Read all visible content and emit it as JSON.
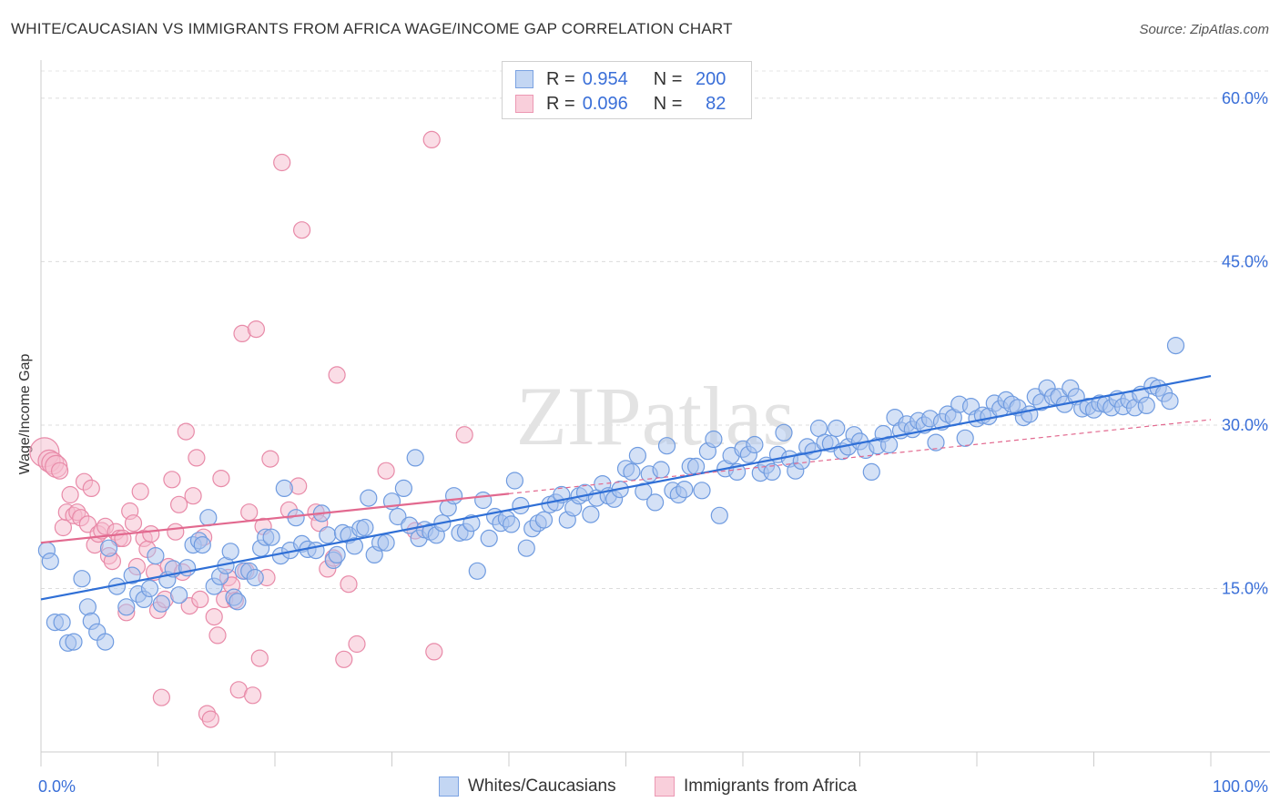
{
  "title": "WHITE/CAUCASIAN VS IMMIGRANTS FROM AFRICA WAGE/INCOME GAP CORRELATION CHART",
  "source": "Source: ZipAtlas.com",
  "watermark": "ZIPatlas",
  "legend": {
    "rows": [
      {
        "r_label": "R =",
        "r_value": "0.954",
        "n_label": "N =",
        "n_value": "200"
      },
      {
        "r_label": "R =",
        "r_value": "0.096",
        "n_label": "N =",
        "n_value": "82"
      }
    ]
  },
  "bottom_legend": {
    "white": "Whites/Caucasians",
    "africa": "Immigrants from Africa"
  },
  "colors": {
    "blue_fill": "#a9c4ee",
    "blue_stroke": "#6f9be0",
    "blue_line": "#2f6fd6",
    "pink_fill": "#f6bccd",
    "pink_stroke": "#e88aa8",
    "pink_line": "#e2698f",
    "axis_text": "#3a6fd8"
  },
  "chart_data": {
    "type": "scatter",
    "title": "WHITE/CAUCASIAN VS IMMIGRANTS FROM AFRICA WAGE/INCOME GAP CORRELATION CHART",
    "xlabel": "",
    "ylabel": "Wage/Income Gap",
    "xlim": [
      0,
      100
    ],
    "ylim": [
      0,
      63
    ],
    "x_tick_labels": [
      "0.0%",
      "100.0%"
    ],
    "y_ticks": [
      15,
      30,
      45,
      60
    ],
    "y_tick_labels": [
      "15.0%",
      "30.0%",
      "45.0%",
      "60.0%"
    ],
    "grid": true,
    "legend_position": "top-center",
    "series": [
      {
        "name": "Whites/Caucasians",
        "r": 0.954,
        "n": 200,
        "trend": {
          "x": [
            0,
            100
          ],
          "y": [
            14.0,
            34.5
          ]
        },
        "points": [
          [
            0.5,
            18.5
          ],
          [
            0.8,
            17.5
          ],
          [
            1.2,
            11.9
          ],
          [
            1.8,
            11.9
          ],
          [
            2.3,
            10.0
          ],
          [
            2.8,
            10.1
          ],
          [
            3.5,
            15.9
          ],
          [
            4.0,
            13.3
          ],
          [
            4.3,
            12.0
          ],
          [
            4.8,
            11.0
          ],
          [
            5.5,
            10.1
          ],
          [
            5.8,
            18.7
          ],
          [
            6.5,
            15.2
          ],
          [
            7.3,
            13.3
          ],
          [
            7.8,
            16.2
          ],
          [
            8.3,
            14.5
          ],
          [
            8.8,
            14.0
          ],
          [
            9.3,
            15.0
          ],
          [
            9.8,
            18.0
          ],
          [
            10.3,
            13.6
          ],
          [
            10.8,
            15.8
          ],
          [
            11.3,
            16.8
          ],
          [
            11.8,
            14.4
          ],
          [
            12.5,
            16.9
          ],
          [
            13.0,
            19.0
          ],
          [
            13.5,
            19.4
          ],
          [
            13.8,
            19.0
          ],
          [
            14.3,
            21.5
          ],
          [
            14.8,
            15.2
          ],
          [
            15.3,
            16.1
          ],
          [
            15.8,
            17.1
          ],
          [
            16.2,
            18.4
          ],
          [
            16.5,
            14.2
          ],
          [
            16.8,
            13.8
          ],
          [
            17.3,
            16.6
          ],
          [
            17.8,
            16.6
          ],
          [
            18.3,
            16.0
          ],
          [
            18.8,
            18.7
          ],
          [
            19.2,
            19.7
          ],
          [
            19.7,
            19.7
          ],
          [
            20.5,
            18.0
          ],
          [
            20.8,
            24.2
          ],
          [
            21.3,
            18.5
          ],
          [
            21.8,
            21.5
          ],
          [
            22.3,
            19.1
          ],
          [
            22.8,
            18.6
          ],
          [
            23.5,
            18.5
          ],
          [
            24.0,
            21.9
          ],
          [
            24.5,
            19.9
          ],
          [
            25.0,
            17.6
          ],
          [
            25.3,
            18.1
          ],
          [
            25.8,
            20.1
          ],
          [
            26.3,
            19.9
          ],
          [
            26.8,
            18.9
          ],
          [
            27.3,
            20.5
          ],
          [
            27.7,
            20.6
          ],
          [
            28.0,
            23.3
          ],
          [
            28.5,
            18.1
          ],
          [
            29.0,
            19.2
          ],
          [
            29.5,
            19.2
          ],
          [
            30.0,
            23.0
          ],
          [
            30.5,
            21.6
          ],
          [
            31.0,
            24.2
          ],
          [
            31.5,
            20.8
          ],
          [
            32.0,
            27.0
          ],
          [
            32.3,
            19.6
          ],
          [
            32.8,
            20.4
          ],
          [
            33.3,
            20.2
          ],
          [
            33.8,
            19.9
          ],
          [
            34.3,
            21.0
          ],
          [
            34.8,
            22.4
          ],
          [
            35.3,
            23.5
          ],
          [
            35.8,
            20.1
          ],
          [
            36.3,
            20.2
          ],
          [
            36.8,
            21.0
          ],
          [
            37.3,
            16.6
          ],
          [
            37.8,
            23.1
          ],
          [
            38.3,
            19.6
          ],
          [
            38.8,
            21.6
          ],
          [
            39.3,
            21.0
          ],
          [
            39.8,
            21.4
          ],
          [
            40.2,
            20.9
          ],
          [
            40.5,
            24.9
          ],
          [
            41.0,
            22.6
          ],
          [
            41.5,
            18.7
          ],
          [
            42.0,
            20.5
          ],
          [
            42.5,
            21.0
          ],
          [
            43.0,
            21.3
          ],
          [
            43.5,
            22.7
          ],
          [
            44.0,
            22.9
          ],
          [
            44.5,
            23.6
          ],
          [
            45.0,
            21.3
          ],
          [
            45.5,
            22.4
          ],
          [
            46.0,
            23.5
          ],
          [
            46.5,
            23.8
          ],
          [
            47.0,
            21.8
          ],
          [
            47.5,
            23.3
          ],
          [
            48.0,
            24.6
          ],
          [
            48.5,
            23.5
          ],
          [
            49.0,
            23.2
          ],
          [
            49.5,
            24.1
          ],
          [
            50.0,
            26.0
          ],
          [
            50.5,
            25.7
          ],
          [
            51.0,
            27.2
          ],
          [
            51.5,
            23.9
          ],
          [
            52.0,
            25.5
          ],
          [
            52.5,
            22.9
          ],
          [
            53.0,
            25.9
          ],
          [
            53.5,
            28.1
          ],
          [
            54.0,
            24.0
          ],
          [
            54.5,
            23.6
          ],
          [
            55.0,
            24.1
          ],
          [
            55.5,
            26.2
          ],
          [
            56.0,
            26.2
          ],
          [
            56.5,
            24.0
          ],
          [
            57.0,
            27.6
          ],
          [
            57.5,
            28.7
          ],
          [
            58.0,
            21.7
          ],
          [
            58.5,
            26.0
          ],
          [
            59.0,
            27.2
          ],
          [
            59.5,
            25.7
          ],
          [
            60.0,
            27.8
          ],
          [
            60.5,
            27.3
          ],
          [
            61.0,
            28.2
          ],
          [
            61.5,
            25.6
          ],
          [
            62.0,
            26.3
          ],
          [
            62.5,
            25.7
          ],
          [
            63.0,
            27.3
          ],
          [
            63.5,
            29.3
          ],
          [
            64.0,
            26.9
          ],
          [
            64.5,
            25.8
          ],
          [
            65.0,
            26.7
          ],
          [
            65.5,
            28.0
          ],
          [
            66.0,
            27.6
          ],
          [
            66.5,
            29.7
          ],
          [
            67.0,
            28.4
          ],
          [
            67.5,
            28.3
          ],
          [
            68.0,
            29.7
          ],
          [
            68.5,
            27.6
          ],
          [
            69.0,
            28.0
          ],
          [
            69.5,
            29.1
          ],
          [
            70.0,
            28.5
          ],
          [
            70.5,
            27.7
          ],
          [
            71.0,
            25.7
          ],
          [
            71.5,
            28.1
          ],
          [
            72.0,
            29.2
          ],
          [
            72.5,
            28.2
          ],
          [
            73.0,
            30.7
          ],
          [
            73.5,
            29.5
          ],
          [
            74.0,
            30.1
          ],
          [
            74.5,
            29.6
          ],
          [
            75.0,
            30.4
          ],
          [
            75.5,
            30.0
          ],
          [
            76.0,
            30.6
          ],
          [
            76.5,
            28.4
          ],
          [
            77.0,
            30.3
          ],
          [
            77.5,
            31.0
          ],
          [
            78.0,
            30.7
          ],
          [
            78.5,
            31.9
          ],
          [
            79.0,
            28.8
          ],
          [
            79.5,
            31.7
          ],
          [
            80.0,
            30.6
          ],
          [
            80.5,
            30.9
          ],
          [
            81.0,
            30.8
          ],
          [
            81.5,
            32.0
          ],
          [
            82.0,
            31.5
          ],
          [
            82.5,
            32.3
          ],
          [
            83.0,
            31.9
          ],
          [
            83.5,
            31.6
          ],
          [
            84.0,
            30.7
          ],
          [
            84.5,
            31.0
          ],
          [
            85.0,
            32.6
          ],
          [
            85.5,
            32.1
          ],
          [
            86.0,
            33.4
          ],
          [
            86.5,
            32.6
          ],
          [
            87.0,
            32.6
          ],
          [
            87.5,
            31.9
          ],
          [
            88.0,
            33.4
          ],
          [
            88.5,
            32.6
          ],
          [
            89.0,
            31.5
          ],
          [
            89.5,
            31.7
          ],
          [
            90.0,
            31.4
          ],
          [
            90.5,
            32.0
          ],
          [
            91.0,
            31.9
          ],
          [
            91.5,
            31.6
          ],
          [
            92.0,
            32.4
          ],
          [
            92.5,
            31.7
          ],
          [
            93.0,
            32.3
          ],
          [
            93.5,
            31.6
          ],
          [
            94.0,
            32.8
          ],
          [
            94.5,
            31.8
          ],
          [
            95.0,
            33.6
          ],
          [
            95.5,
            33.4
          ],
          [
            96.0,
            32.9
          ],
          [
            96.5,
            32.2
          ],
          [
            97.0,
            37.3
          ]
        ]
      },
      {
        "name": "Immigrants from Africa",
        "r": 0.096,
        "n": 82,
        "trend": {
          "x": [
            0,
            40
          ],
          "y": [
            19.2,
            23.7
          ]
        },
        "trend_dashed": {
          "x": [
            40,
            100
          ],
          "y": [
            23.7,
            30.5
          ]
        },
        "points": [
          [
            0.3,
            27.5
          ],
          [
            0.7,
            26.7
          ],
          [
            1.0,
            26.5
          ],
          [
            1.3,
            26.2
          ],
          [
            1.6,
            25.8
          ],
          [
            1.9,
            20.6
          ],
          [
            2.2,
            22.0
          ],
          [
            2.5,
            23.6
          ],
          [
            2.8,
            21.7
          ],
          [
            3.1,
            22.0
          ],
          [
            3.4,
            21.5
          ],
          [
            3.7,
            24.8
          ],
          [
            4.0,
            20.9
          ],
          [
            4.3,
            24.2
          ],
          [
            4.6,
            19.0
          ],
          [
            4.9,
            20.0
          ],
          [
            5.2,
            20.3
          ],
          [
            5.5,
            20.7
          ],
          [
            5.8,
            18.0
          ],
          [
            6.1,
            17.5
          ],
          [
            6.4,
            20.2
          ],
          [
            6.7,
            19.6
          ],
          [
            7.0,
            19.6
          ],
          [
            7.3,
            12.8
          ],
          [
            7.6,
            22.1
          ],
          [
            7.9,
            21.0
          ],
          [
            8.2,
            17.0
          ],
          [
            8.5,
            23.9
          ],
          [
            8.8,
            19.6
          ],
          [
            9.1,
            18.6
          ],
          [
            9.4,
            20.0
          ],
          [
            9.7,
            16.5
          ],
          [
            10.0,
            13.0
          ],
          [
            10.3,
            5.0
          ],
          [
            10.6,
            14.0
          ],
          [
            10.9,
            17.0
          ],
          [
            11.2,
            25.0
          ],
          [
            11.5,
            20.2
          ],
          [
            11.8,
            22.7
          ],
          [
            12.1,
            16.5
          ],
          [
            12.4,
            29.4
          ],
          [
            12.7,
            13.4
          ],
          [
            13.0,
            23.5
          ],
          [
            13.3,
            27.0
          ],
          [
            13.6,
            14.0
          ],
          [
            13.9,
            19.7
          ],
          [
            14.2,
            3.5
          ],
          [
            14.5,
            3.0
          ],
          [
            14.8,
            12.4
          ],
          [
            15.1,
            10.7
          ],
          [
            15.4,
            25.1
          ],
          [
            15.7,
            14.0
          ],
          [
            16.0,
            16.0
          ],
          [
            16.3,
            15.3
          ],
          [
            16.6,
            13.9
          ],
          [
            16.9,
            5.7
          ],
          [
            17.2,
            38.4
          ],
          [
            17.5,
            16.6
          ],
          [
            17.8,
            22.0
          ],
          [
            18.1,
            5.2
          ],
          [
            18.4,
            38.8
          ],
          [
            18.7,
            8.6
          ],
          [
            19.0,
            20.7
          ],
          [
            19.3,
            16.0
          ],
          [
            19.6,
            26.9
          ],
          [
            20.6,
            54.1
          ],
          [
            21.2,
            22.2
          ],
          [
            22.0,
            24.4
          ],
          [
            22.3,
            47.9
          ],
          [
            23.5,
            22.0
          ],
          [
            23.8,
            21.0
          ],
          [
            24.5,
            16.8
          ],
          [
            25.0,
            17.8
          ],
          [
            25.3,
            34.6
          ],
          [
            25.9,
            8.5
          ],
          [
            26.3,
            15.4
          ],
          [
            27.0,
            9.9
          ],
          [
            29.5,
            25.8
          ],
          [
            32.0,
            20.3
          ],
          [
            33.4,
            56.2
          ],
          [
            33.6,
            9.2
          ],
          [
            36.2,
            29.1
          ]
        ]
      }
    ]
  }
}
